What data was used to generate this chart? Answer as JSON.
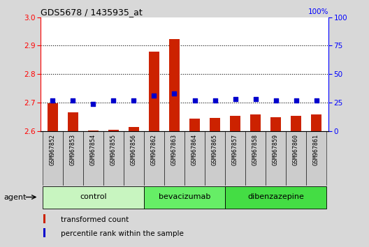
{
  "title": "GDS5678 / 1435935_at",
  "samples": [
    "GSM967852",
    "GSM967853",
    "GSM967854",
    "GSM967855",
    "GSM967856",
    "GSM967862",
    "GSM967863",
    "GSM967864",
    "GSM967865",
    "GSM967857",
    "GSM967858",
    "GSM967859",
    "GSM967860",
    "GSM967861"
  ],
  "transformed_counts": [
    2.697,
    2.665,
    2.602,
    2.603,
    2.613,
    2.878,
    2.924,
    2.643,
    2.645,
    2.652,
    2.658,
    2.648,
    2.653,
    2.658
  ],
  "percentile_ranks": [
    27,
    27,
    24,
    27,
    27,
    31,
    33,
    27,
    27,
    28,
    28,
    27,
    27,
    27
  ],
  "ylim_left": [
    2.6,
    3.0
  ],
  "ylim_right": [
    0,
    100
  ],
  "yticks_left": [
    2.6,
    2.7,
    2.8,
    2.9,
    3.0
  ],
  "yticks_right": [
    0,
    25,
    50,
    75,
    100
  ],
  "group_info": [
    {
      "name": "control",
      "indices": [
        0,
        1,
        2,
        3,
        4
      ],
      "color": "#c8f5c0"
    },
    {
      "name": "bevacizumab",
      "indices": [
        5,
        6,
        7,
        8
      ],
      "color": "#66ee66"
    },
    {
      "name": "dibenzazepine",
      "indices": [
        9,
        10,
        11,
        12,
        13
      ],
      "color": "#44dd44"
    }
  ],
  "bar_color": "#cc2200",
  "dot_color": "#0000cc",
  "bar_width": 0.55,
  "bar_bottom": 2.6,
  "grid_lines": [
    2.7,
    2.8,
    2.9
  ],
  "bg_color": "#d8d8d8",
  "plot_bg": "#ffffff",
  "tick_box_color": "#cccccc",
  "legend_labels": [
    "transformed count",
    "percentile rank within the sample"
  ],
  "legend_colors": [
    "#cc2200",
    "#0000cc"
  ]
}
